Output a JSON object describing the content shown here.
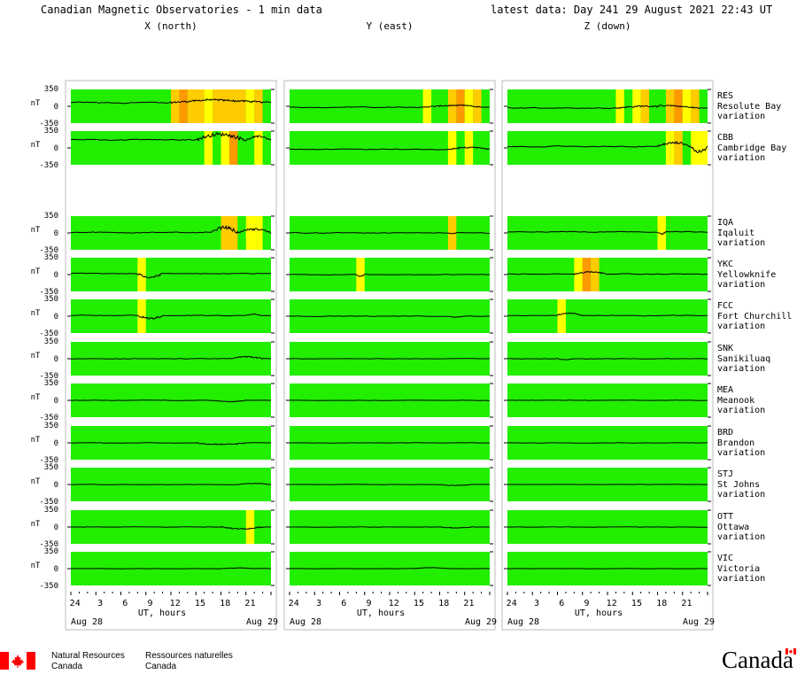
{
  "header": {
    "title": "Canadian Magnetic Observatories - 1 min data",
    "latest_label": "latest data: Day 241",
    "latest_date": "29 August 2021 22:43 UT"
  },
  "footer": {
    "nrcan_en": [
      "Natural Resources",
      "Canada"
    ],
    "nrcan_fr": [
      "Ressources naturelles",
      "Canada"
    ],
    "wordmark": "Canada"
  },
  "chart_data": {
    "type": "line",
    "title": "Canadian Magnetic Observatories - 1 min data",
    "components": [
      "X (north)",
      "Y (east)",
      "Z (down)"
    ],
    "ylabel": "nT",
    "ylim": [
      -350,
      350
    ],
    "yticks": [
      350,
      0,
      -350
    ],
    "xlabel": "UT, hours",
    "xlim": [
      0,
      24
    ],
    "xtick_labels": [
      "24",
      "3",
      "6",
      "9",
      "12",
      "15",
      "18",
      "21"
    ],
    "date_labels": [
      "Aug 28",
      "Aug 29"
    ],
    "activity_colors": {
      "quiet": "#22ee00",
      "moderate": "#ffff00",
      "active": "#ffcc00",
      "storm": "#ff9900"
    },
    "stations": [
      {
        "code": "RES",
        "name": "Resolute Bay",
        "type": "variation",
        "bands": [
          [
            [
              12,
              13,
              "active"
            ],
            [
              13,
              14,
              "storm"
            ],
            [
              14,
              16,
              "active"
            ],
            [
              16,
              17,
              "moderate"
            ],
            [
              17,
              21,
              "active"
            ],
            [
              21,
              22,
              "moderate"
            ],
            [
              22,
              23,
              "active"
            ]
          ],
          [
            [
              16,
              17,
              "moderate"
            ],
            [
              19,
              20,
              "active"
            ],
            [
              20,
              21,
              "storm"
            ],
            [
              21,
              22,
              "moderate"
            ],
            [
              22,
              23,
              "active"
            ]
          ],
          [
            [
              13,
              14,
              "moderate"
            ],
            [
              15,
              16,
              "moderate"
            ],
            [
              16,
              17,
              "active"
            ],
            [
              19,
              20,
              "active"
            ],
            [
              20,
              21,
              "storm"
            ],
            [
              21,
              22,
              "moderate"
            ],
            [
              22,
              23,
              "active"
            ]
          ]
        ],
        "traces": [
          {
            "base": 75,
            "noise": 12,
            "events": [
              [
                12,
                23,
                55
              ]
            ]
          },
          {
            "base": -20,
            "noise": 8,
            "events": [
              [
                16,
                23,
                35
              ]
            ]
          },
          {
            "base": -35,
            "noise": 8,
            "events": [
              [
                13,
                23,
                45
              ]
            ]
          }
        ]
      },
      {
        "code": "CBB",
        "name": "Cambridge Bay",
        "type": "variation",
        "bands": [
          [
            [
              16,
              17,
              "moderate"
            ],
            [
              18,
              19,
              "moderate"
            ],
            [
              19,
              20,
              "storm"
            ],
            [
              22,
              23,
              "moderate"
            ]
          ],
          [
            [
              19,
              20,
              "moderate"
            ],
            [
              21,
              22,
              "moderate"
            ]
          ],
          [
            [
              19,
              20,
              "moderate"
            ],
            [
              20,
              21,
              "active"
            ],
            [
              22,
              24,
              "moderate"
            ]
          ]
        ],
        "traces": [
          {
            "base": 170,
            "noise": 10,
            "events": [
              [
                15,
                21,
                110
              ],
              [
                21,
                24,
                60
              ]
            ]
          },
          {
            "base": -30,
            "noise": 8,
            "events": [
              [
                19,
                24,
                40
              ]
            ]
          },
          {
            "base": 30,
            "noise": 10,
            "events": [
              [
                18,
                22,
                70
              ],
              [
                22,
                24,
                -110
              ]
            ]
          }
        ]
      },
      {
        "code": "IQA",
        "name": "Iqaluit",
        "type": "variation",
        "bands": [
          [
            [
              18,
              20,
              "active"
            ],
            [
              21,
              23,
              "moderate"
            ]
          ],
          [
            [
              19,
              20,
              "active"
            ]
          ],
          [
            [
              18,
              19,
              "moderate"
            ]
          ]
        ],
        "traces": [
          {
            "base": 10,
            "noise": 10,
            "events": [
              [
                17,
                20,
                110
              ],
              [
                20,
                24,
                60
              ]
            ]
          },
          {
            "base": 0,
            "noise": 8,
            "events": [
              [
                19,
                20,
                -20
              ]
            ]
          },
          {
            "base": 20,
            "noise": 8,
            "events": [
              [
                18,
                19,
                -35
              ]
            ]
          }
        ]
      },
      {
        "code": "YKC",
        "name": "Yellowknife",
        "type": "variation",
        "bands": [
          [
            [
              8,
              9,
              "moderate"
            ]
          ],
          [
            [
              8,
              9,
              "moderate"
            ]
          ],
          [
            [
              8,
              9,
              "moderate"
            ],
            [
              9,
              10,
              "storm"
            ],
            [
              10,
              11,
              "active"
            ]
          ]
        ],
        "traces": [
          {
            "base": 20,
            "noise": 8,
            "events": [
              [
                8,
                11,
                -70
              ]
            ]
          },
          {
            "base": 0,
            "noise": 6,
            "events": [
              [
                8,
                9,
                -40
              ]
            ]
          },
          {
            "base": 10,
            "noise": 6,
            "events": [
              [
                8,
                12,
                45
              ]
            ]
          }
        ]
      },
      {
        "code": "FCC",
        "name": "Fort Churchill",
        "type": "variation",
        "bands": [
          [
            [
              8,
              9,
              "moderate"
            ]
          ],
          [],
          [
            [
              6,
              7,
              "moderate"
            ]
          ]
        ],
        "traces": [
          {
            "base": 15,
            "noise": 8,
            "events": [
              [
                8,
                11,
                -70
              ],
              [
                21,
                23,
                30
              ]
            ]
          },
          {
            "base": 0,
            "noise": 5,
            "events": [
              [
                19,
                21,
                -20
              ]
            ]
          },
          {
            "base": 15,
            "noise": 6,
            "events": [
              [
                6,
                9,
                45
              ]
            ]
          }
        ]
      },
      {
        "code": "SNK",
        "name": "Sanikiluaq",
        "type": "variation",
        "bands": [
          [],
          [],
          []
        ],
        "traces": [
          {
            "base": 0,
            "noise": 6,
            "events": [
              [
                19,
                23,
                40
              ]
            ]
          },
          {
            "base": 0,
            "noise": 4,
            "events": []
          },
          {
            "base": 0,
            "noise": 4,
            "events": [
              [
                6,
                8,
                -20
              ]
            ]
          }
        ]
      },
      {
        "code": "MEA",
        "name": "Meanook",
        "type": "variation",
        "bands": [
          [],
          [],
          []
        ],
        "traces": [
          {
            "base": 0,
            "noise": 4,
            "events": [
              [
                17,
                21,
                -25
              ]
            ]
          },
          {
            "base": 0,
            "noise": 3,
            "events": []
          },
          {
            "base": 0,
            "noise": 3,
            "events": []
          }
        ]
      },
      {
        "code": "BRD",
        "name": "Brandon",
        "type": "variation",
        "bands": [
          [],
          [],
          []
        ],
        "traces": [
          {
            "base": 0,
            "noise": 4,
            "events": [
              [
                15,
                21,
                -35
              ]
            ]
          },
          {
            "base": 0,
            "noise": 3,
            "events": []
          },
          {
            "base": 0,
            "noise": 3,
            "events": []
          }
        ]
      },
      {
        "code": "STJ",
        "name": "St Johns",
        "type": "variation",
        "bands": [
          [],
          [],
          []
        ],
        "traces": [
          {
            "base": 0,
            "noise": 4,
            "events": [
              [
                20,
                24,
                20
              ]
            ]
          },
          {
            "base": 0,
            "noise": 3,
            "events": [
              [
                18,
                22,
                -20
              ]
            ]
          },
          {
            "base": 0,
            "noise": 3,
            "events": []
          }
        ]
      },
      {
        "code": "OTT",
        "name": "Ottawa",
        "type": "variation",
        "bands": [
          [
            [
              21,
              22,
              "moderate"
            ]
          ],
          [],
          []
        ],
        "traces": [
          {
            "base": 0,
            "noise": 4,
            "events": [
              [
                18,
                23,
                -40
              ]
            ]
          },
          {
            "base": 0,
            "noise": 3,
            "events": [
              [
                18,
                22,
                -20
              ]
            ]
          },
          {
            "base": 0,
            "noise": 3,
            "events": []
          }
        ]
      },
      {
        "code": "VIC",
        "name": "Victoria",
        "type": "variation",
        "bands": [
          [],
          [],
          []
        ],
        "traces": [
          {
            "base": 0,
            "noise": 3,
            "events": [
              [
                18,
                22,
                15
              ]
            ]
          },
          {
            "base": 0,
            "noise": 3,
            "events": [
              [
                15,
                19,
                20
              ]
            ]
          },
          {
            "base": 0,
            "noise": 3,
            "events": []
          }
        ]
      }
    ]
  }
}
